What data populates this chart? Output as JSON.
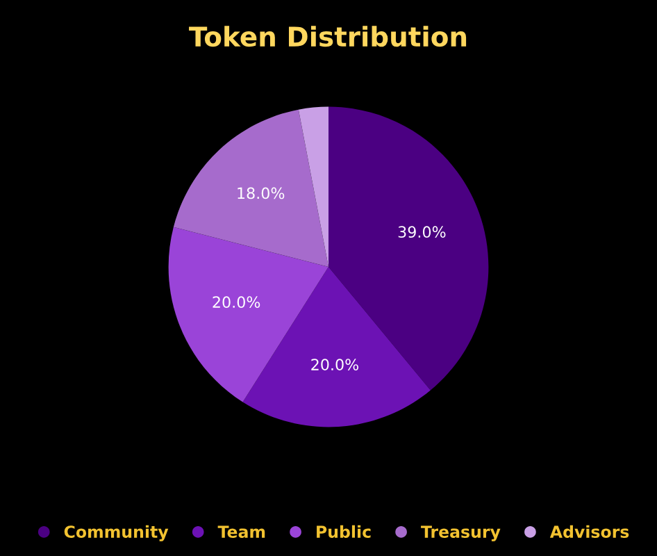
{
  "chart_data": {
    "type": "pie",
    "title": "Token Distribution",
    "categories": [
      "Community",
      "Team",
      "Public",
      "Treasury",
      "Advisors"
    ],
    "values": [
      39,
      20,
      20,
      18,
      3
    ],
    "value_labels": [
      "39.0%",
      "20.0%",
      "20.0%",
      "18.0%",
      null
    ],
    "colors": [
      "#4b0082",
      "#6c12b4",
      "#9a44d8",
      "#a66bcc",
      "#c9a0e6"
    ],
    "legend": "bottom"
  }
}
